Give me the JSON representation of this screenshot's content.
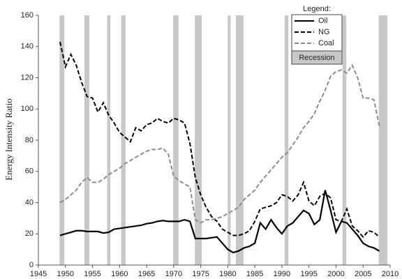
{
  "chart_data": {
    "type": "line",
    "y_label": "Energy Intensity Ratio",
    "legend_title": "Legend:",
    "recession_label": "Recession",
    "recession_color": "#c8c8c8",
    "recessions": [
      [
        1948.9,
        1949.8
      ],
      [
        1953.5,
        1954.4
      ],
      [
        1957.7,
        1958.3
      ],
      [
        1960.3,
        1961.1
      ],
      [
        1969.9,
        1970.9
      ],
      [
        1973.9,
        1975.2
      ],
      [
        1980.0,
        1980.5
      ],
      [
        1981.5,
        1982.9
      ],
      [
        1990.5,
        1991.2
      ],
      [
        2001.2,
        2001.9
      ],
      [
        2007.9,
        2009.5
      ]
    ],
    "x": [
      1949,
      1950,
      1951,
      1952,
      1953,
      1954,
      1955,
      1956,
      1957,
      1958,
      1959,
      1960,
      1961,
      1962,
      1963,
      1964,
      1965,
      1966,
      1967,
      1968,
      1969,
      1970,
      1971,
      1972,
      1973,
      1974,
      1975,
      1976,
      1977,
      1978,
      1979,
      1980,
      1981,
      1982,
      1983,
      1984,
      1985,
      1986,
      1987,
      1988,
      1989,
      1990,
      1991,
      1992,
      1993,
      1994,
      1995,
      1996,
      1997,
      1998,
      1999,
      2000,
      2001,
      2002,
      2003,
      2004,
      2005,
      2006,
      2007,
      2008
    ],
    "series": [
      {
        "name": "Oil",
        "color": "#000000",
        "dash": "solid",
        "values": [
          19,
          20,
          21,
          22,
          22,
          21.5,
          21.5,
          21.5,
          20.5,
          21,
          23,
          23.5,
          24,
          24.5,
          25,
          25.5,
          26.5,
          27,
          28,
          28.5,
          28,
          28,
          28,
          29,
          28,
          17,
          17,
          17,
          17.5,
          18,
          14,
          10,
          8,
          9,
          11,
          12,
          14,
          27,
          23,
          29,
          24,
          20,
          25,
          27,
          31,
          35,
          33,
          26,
          29,
          48,
          35,
          21,
          28,
          27,
          23,
          19,
          14,
          12,
          11,
          9
        ]
      },
      {
        "name": "NG",
        "color": "#000000",
        "dash": "dashed",
        "values": [
          143,
          127,
          135,
          128,
          117,
          108,
          107,
          98,
          104,
          96,
          91,
          85,
          82,
          79,
          88,
          86,
          90,
          91,
          94,
          92,
          91,
          94,
          93,
          91,
          78,
          56,
          45,
          37,
          31,
          28,
          23,
          21,
          19,
          19,
          20,
          22,
          28,
          36,
          37,
          38,
          40,
          45,
          44,
          41,
          45,
          53,
          41,
          38,
          44,
          46,
          43,
          29,
          28,
          36,
          25,
          22,
          18,
          22,
          21,
          18
        ]
      },
      {
        "name": "Coal",
        "color": "#8c8c8c",
        "dash": "dashed",
        "values": [
          40,
          42,
          45,
          48,
          53,
          56,
          53,
          53,
          55,
          58,
          60,
          62,
          65,
          67,
          69,
          71,
          73,
          74,
          74,
          75,
          71,
          57,
          54,
          52,
          50,
          29,
          27,
          29,
          29,
          30,
          31,
          33,
          35,
          37,
          42,
          45,
          48,
          53,
          57,
          61,
          65,
          69,
          72,
          77,
          82,
          88,
          92,
          97,
          105,
          112,
          121,
          124,
          125,
          123,
          128,
          120,
          107,
          107,
          106,
          89
        ]
      }
    ],
    "xlim": [
      1945,
      2010
    ],
    "xticks": [
      1945,
      1950,
      1955,
      1960,
      1965,
      1970,
      1975,
      1980,
      1985,
      1990,
      1995,
      2000,
      2005,
      2010
    ],
    "ylim": [
      0,
      160
    ],
    "yticks": [
      0,
      20,
      40,
      60,
      80,
      100,
      120,
      140,
      160
    ]
  }
}
